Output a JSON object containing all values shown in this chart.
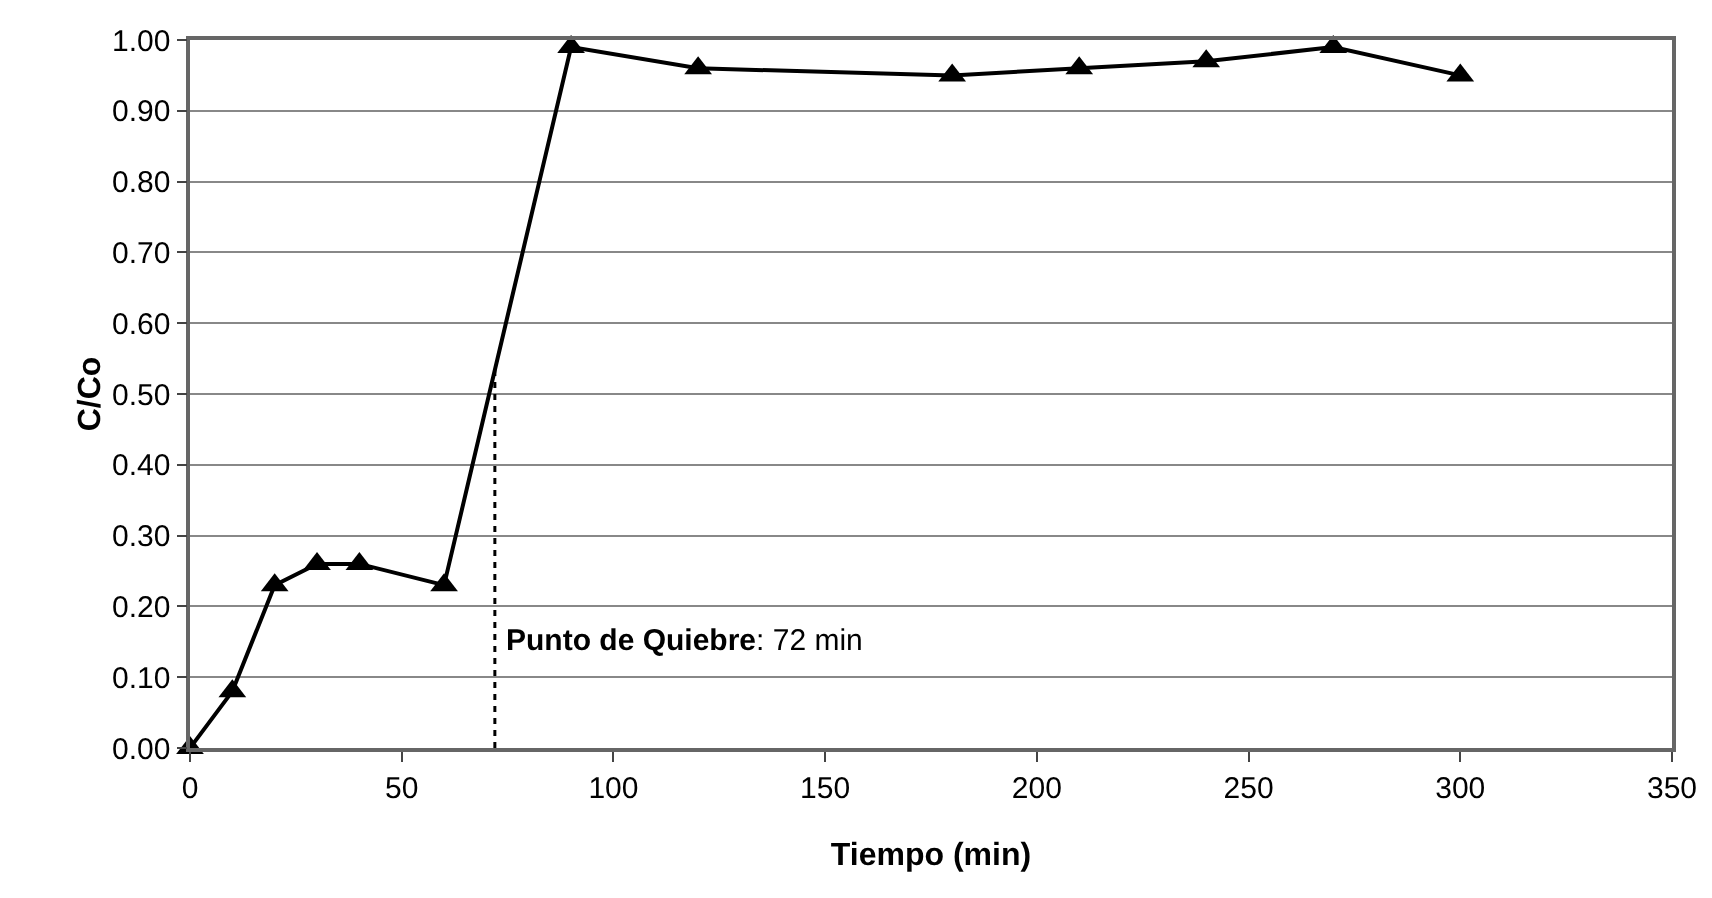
{
  "chart_data": {
    "type": "line",
    "xlabel": "Tiempo (min)",
    "ylabel": "C/Co",
    "x": [
      0,
      10,
      20,
      30,
      40,
      60,
      90,
      120,
      180,
      210,
      240,
      270,
      300
    ],
    "series": [
      {
        "color": "#000000",
        "values": [
          0,
          0.08,
          0.23,
          0.26,
          0.26,
          0.23,
          0.99,
          0.96,
          0.95,
          0.96,
          0.97,
          0.99,
          0.95
        ]
      }
    ],
    "xlim": [
      0,
      350
    ],
    "xticks": [
      0,
      50,
      100,
      150,
      200,
      250,
      300,
      350
    ],
    "ylim": [
      0,
      1
    ],
    "yticks": [
      {
        "value": 0,
        "label": "0.00"
      },
      {
        "value": 0.1,
        "label": "0.10"
      },
      {
        "value": 0.2,
        "label": "0.20"
      },
      {
        "value": 0.3,
        "label": "0.30"
      },
      {
        "value": 0.4,
        "label": "0.40"
      },
      {
        "value": 0.5,
        "label": "0.50"
      },
      {
        "value": 0.6,
        "label": "0.60"
      },
      {
        "value": 0.7,
        "label": "0.70"
      },
      {
        "value": 0.8,
        "label": "0.80"
      },
      {
        "value": 0.9,
        "label": "0.90"
      },
      {
        "value": 1,
        "label": "1.00"
      }
    ],
    "ref_lines": [
      {
        "axis": "x",
        "value": 72,
        "label": "Punto de Quiebre: 72 min",
        "line_style": "dotted",
        "color": "#000000"
      }
    ],
    "grid": "y",
    "marker": "triangle",
    "line_style": "solid"
  }
}
